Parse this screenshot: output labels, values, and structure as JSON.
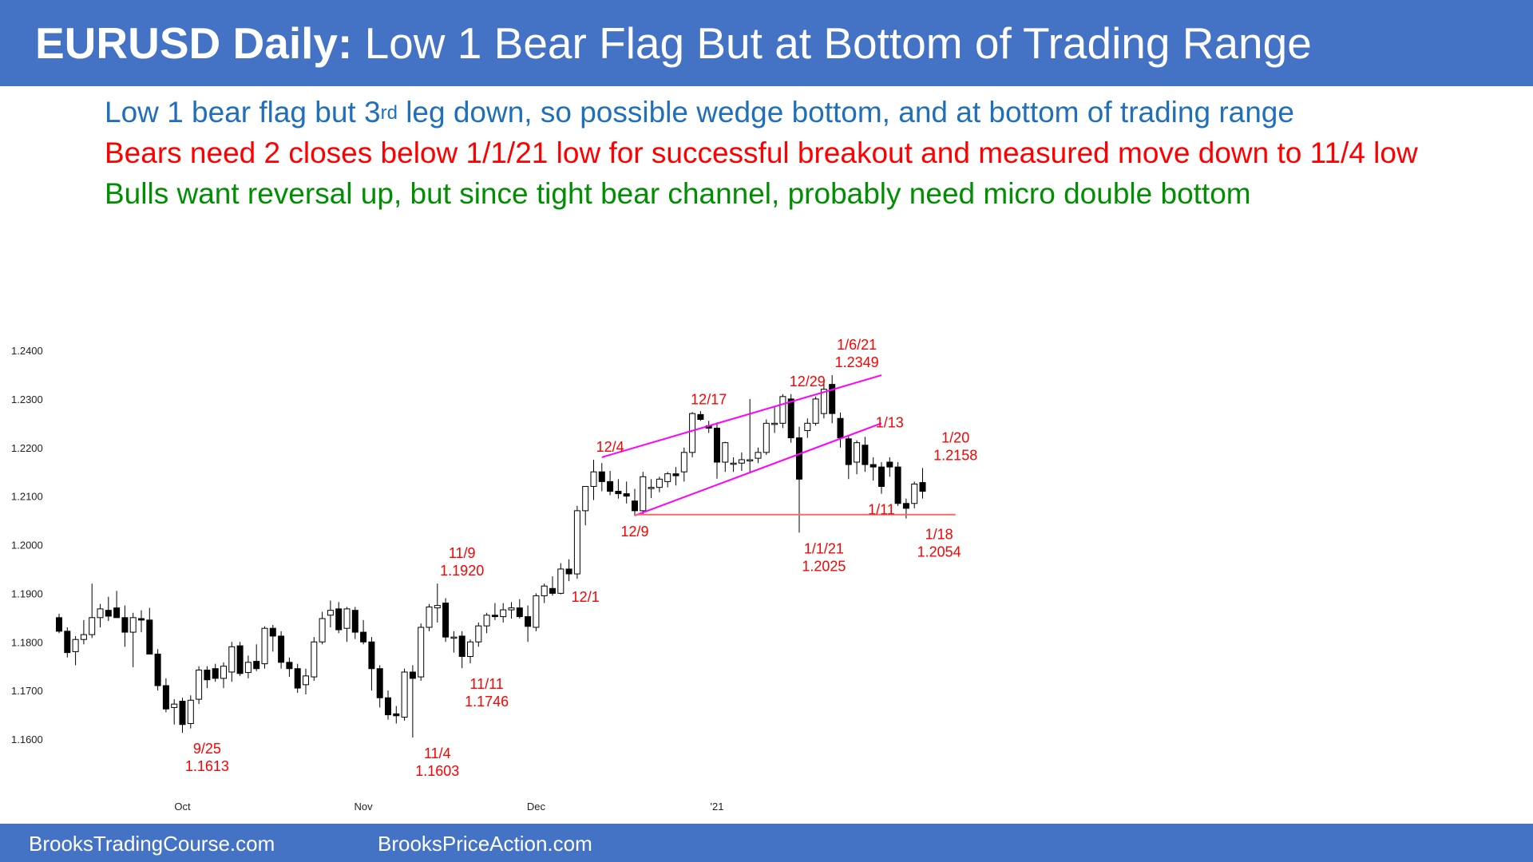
{
  "header": {
    "title_bold": "EURUSD Daily:",
    "title_rest": " Low 1 Bear Flag But at Bottom of Trading Range"
  },
  "commentary": {
    "line1_pre": "Low 1 bear flag but 3",
    "line1_sup": "rd",
    "line1_post": " leg down, so possible wedge bottom, and at bottom of trading range",
    "line2": "Bears need 2 closes below 1/1/21 low for successful breakout and measured move down to 11/4 low",
    "line3": "Bulls want reversal up, but since tight bear channel, probably need micro double bottom"
  },
  "footer": {
    "left": "BrooksTradingCourse.com",
    "right": "BrooksPriceAction.com"
  },
  "colors": {
    "brand_blue": "#4472c4",
    "annotation_red": "#ff0000",
    "trendline_magenta": "#ff00ff",
    "support_line": "#ff6666",
    "bull_green": "#008f00",
    "text_blue": "#1f6fba"
  },
  "chart_data": {
    "type": "candlestick",
    "instrument": "EURUSD",
    "timeframe": "Daily",
    "ylim": [
      1.158,
      1.244
    ],
    "yticks": [
      "1.2400",
      "1.2300",
      "1.2200",
      "1.2100",
      "1.2000",
      "1.1900",
      "1.1800",
      "1.1700",
      "1.1600"
    ],
    "xticks": [
      {
        "label": "Oct",
        "bar": 15
      },
      {
        "label": "Nov",
        "bar": 37
      },
      {
        "label": "Dec",
        "bar": 58
      },
      {
        "label": "'21",
        "bar": 80
      }
    ],
    "candles": [
      [
        1.185,
        1.1858,
        1.1818,
        1.1822
      ],
      [
        1.1822,
        1.183,
        1.1768,
        1.1778
      ],
      [
        1.178,
        1.1812,
        1.1752,
        1.1805
      ],
      [
        1.1805,
        1.1845,
        1.1795,
        1.1815
      ],
      [
        1.1815,
        1.192,
        1.1808,
        1.185
      ],
      [
        1.185,
        1.1878,
        1.183,
        1.1868
      ],
      [
        1.1865,
        1.1893,
        1.1843,
        1.1853
      ],
      [
        1.187,
        1.1905,
        1.185,
        1.185
      ],
      [
        1.185,
        1.1875,
        1.179,
        1.182
      ],
      [
        1.182,
        1.186,
        1.1748,
        1.185
      ],
      [
        1.1848,
        1.1865,
        1.182,
        1.1845
      ],
      [
        1.1845,
        1.187,
        1.1775,
        1.1775
      ],
      [
        1.1775,
        1.1785,
        1.17,
        1.171
      ],
      [
        1.171,
        1.1725,
        1.1655,
        1.1662
      ],
      [
        1.1665,
        1.1682,
        1.163,
        1.1672
      ],
      [
        1.1678,
        1.1685,
        1.1613,
        1.163
      ],
      [
        1.1632,
        1.169,
        1.1622,
        1.168
      ],
      [
        1.1682,
        1.175,
        1.1672,
        1.1742
      ],
      [
        1.1742,
        1.175,
        1.1705,
        1.1722
      ],
      [
        1.1745,
        1.1755,
        1.1718,
        1.1725
      ],
      [
        1.1725,
        1.1758,
        1.1705,
        1.175
      ],
      [
        1.1738,
        1.18,
        1.1718,
        1.179
      ],
      [
        1.1792,
        1.18,
        1.173,
        1.1735
      ],
      [
        1.1737,
        1.1772,
        1.1725,
        1.1758
      ],
      [
        1.176,
        1.1795,
        1.174,
        1.1745
      ],
      [
        1.1755,
        1.1832,
        1.1745,
        1.1828
      ],
      [
        1.1828,
        1.1835,
        1.178,
        1.1812
      ],
      [
        1.1812,
        1.1822,
        1.1745,
        1.1758
      ],
      [
        1.1758,
        1.1768,
        1.1728,
        1.1745
      ],
      [
        1.1745,
        1.1755,
        1.1695,
        1.1705
      ],
      [
        1.1712,
        1.1745,
        1.1692,
        1.173
      ],
      [
        1.1728,
        1.181,
        1.172,
        1.18
      ],
      [
        1.18,
        1.1862,
        1.1795,
        1.1848
      ],
      [
        1.1855,
        1.1885,
        1.183,
        1.1865
      ],
      [
        1.1868,
        1.1882,
        1.1818,
        1.1825
      ],
      [
        1.1828,
        1.1872,
        1.18,
        1.1868
      ],
      [
        1.1865,
        1.1872,
        1.1806,
        1.182
      ],
      [
        1.182,
        1.1845,
        1.1795,
        1.18
      ],
      [
        1.18,
        1.181,
        1.17,
        1.1745
      ],
      [
        1.1745,
        1.1752,
        1.1665,
        1.1685
      ],
      [
        1.1685,
        1.17,
        1.164,
        1.165
      ],
      [
        1.1652,
        1.1668,
        1.1632,
        1.1648
      ],
      [
        1.1645,
        1.1745,
        1.1638,
        1.1738
      ],
      [
        1.1738,
        1.1752,
        1.1603,
        1.1725
      ],
      [
        1.1728,
        1.1838,
        1.172,
        1.183
      ],
      [
        1.183,
        1.1878,
        1.1822,
        1.1872
      ],
      [
        1.187,
        1.192,
        1.184,
        1.1875
      ],
      [
        1.188,
        1.189,
        1.18,
        1.181
      ],
      [
        1.181,
        1.1822,
        1.1778,
        1.181
      ],
      [
        1.1812,
        1.1822,
        1.1746,
        1.177
      ],
      [
        1.177,
        1.1805,
        1.1756,
        1.18
      ],
      [
        1.18,
        1.184,
        1.179,
        1.1833
      ],
      [
        1.1833,
        1.186,
        1.1818,
        1.1855
      ],
      [
        1.1855,
        1.188,
        1.1845,
        1.1852
      ],
      [
        1.1852,
        1.188,
        1.184,
        1.1866
      ],
      [
        1.1866,
        1.1882,
        1.1848,
        1.187
      ],
      [
        1.187,
        1.1888,
        1.1848,
        1.1852
      ],
      [
        1.1852,
        1.1875,
        1.18,
        1.1832
      ],
      [
        1.183,
        1.19,
        1.1822,
        1.1895
      ],
      [
        1.1895,
        1.192,
        1.188,
        1.1915
      ],
      [
        1.191,
        1.1935,
        1.1895,
        1.19
      ],
      [
        1.19,
        1.1962,
        1.1898,
        1.195
      ],
      [
        1.195,
        1.197,
        1.1925,
        1.194
      ],
      [
        1.194,
        1.208,
        1.193,
        1.207
      ],
      [
        1.207,
        1.212,
        1.204,
        1.212
      ],
      [
        1.212,
        1.2175,
        1.2092,
        1.215
      ],
      [
        1.215,
        1.2168,
        1.211,
        1.213
      ],
      [
        1.213,
        1.2152,
        1.2102,
        1.211
      ],
      [
        1.211,
        1.2135,
        1.2095,
        1.2105
      ],
      [
        1.2105,
        1.213,
        1.2085,
        1.21
      ],
      [
        1.209,
        1.2115,
        1.206,
        1.207
      ],
      [
        1.207,
        1.215,
        1.2062,
        1.214
      ],
      [
        1.2118,
        1.2135,
        1.2096,
        1.2118
      ],
      [
        1.2118,
        1.214,
        1.2108,
        1.2135
      ],
      [
        1.213,
        1.215,
        1.2118,
        1.2146
      ],
      [
        1.2146,
        1.216,
        1.2122,
        1.2142
      ],
      [
        1.215,
        1.22,
        1.213,
        1.219
      ],
      [
        1.219,
        1.2273,
        1.218,
        1.227
      ],
      [
        1.2268,
        1.2275,
        1.2255,
        1.2258
      ],
      [
        1.2245,
        1.2255,
        1.223,
        1.224
      ],
      [
        1.224,
        1.2252,
        1.2136,
        1.217
      ],
      [
        1.217,
        1.2212,
        1.215,
        1.221
      ],
      [
        1.2168,
        1.218,
        1.215,
        1.2168
      ],
      [
        1.2168,
        1.219,
        1.2152,
        1.2175
      ],
      [
        1.2175,
        1.23,
        1.215,
        1.2175
      ],
      [
        1.2178,
        1.22,
        1.2168,
        1.219
      ],
      [
        1.219,
        1.2258,
        1.2185,
        1.225
      ],
      [
        1.225,
        1.2285,
        1.223,
        1.225
      ],
      [
        1.225,
        1.231,
        1.224,
        1.2305
      ],
      [
        1.23,
        1.231,
        1.221,
        1.222
      ],
      [
        1.222,
        1.2243,
        1.2025,
        1.2135
      ],
      [
        1.2235,
        1.226,
        1.222,
        1.225
      ],
      [
        1.225,
        1.2305,
        1.2245,
        1.23
      ],
      [
        1.227,
        1.234,
        1.226,
        1.232
      ],
      [
        1.233,
        1.2349,
        1.225,
        1.227
      ],
      [
        1.226,
        1.2272,
        1.22,
        1.222
      ],
      [
        1.2218,
        1.2225,
        1.2135,
        1.2165
      ],
      [
        1.217,
        1.2215,
        1.2145,
        1.221
      ],
      [
        1.2205,
        1.2222,
        1.215,
        1.2165
      ],
      [
        1.2165,
        1.218,
        1.2132,
        1.216
      ],
      [
        1.216,
        1.217,
        1.2105,
        1.212
      ],
      [
        1.217,
        1.218,
        1.214,
        1.216
      ],
      [
        1.216,
        1.217,
        1.208,
        1.2085
      ],
      [
        1.2085,
        1.2095,
        1.2054,
        1.2075
      ],
      [
        1.2085,
        1.213,
        1.2075,
        1.2125
      ],
      [
        1.2128,
        1.2158,
        1.2095,
        1.211
      ]
    ],
    "trendlines": [
      {
        "name": "channel-upper",
        "from": [
          66,
          1.218
        ],
        "to": [
          100,
          1.2349
        ],
        "color": "#ff00ff"
      },
      {
        "name": "channel-lower",
        "from": [
          70,
          1.206
        ],
        "to": [
          100,
          1.225
        ],
        "color": "#ff00ff"
      },
      {
        "name": "support",
        "from": [
          70,
          1.2062
        ],
        "to": [
          109,
          1.2062
        ],
        "color": "#ff6666"
      }
    ],
    "annotations": [
      {
        "label": "9/25",
        "sub": "1.1613",
        "bar": 18,
        "price": 1.1613,
        "pos": "below"
      },
      {
        "label": "11/4",
        "sub": "1.1603",
        "bar": 46,
        "price": 1.1603,
        "pos": "below"
      },
      {
        "label": "11/9",
        "sub": "1.1920",
        "bar": 49,
        "price": 1.192,
        "pos": "above"
      },
      {
        "label": "11/11",
        "sub": "1.1746",
        "bar": 52,
        "price": 1.1746,
        "pos": "below"
      },
      {
        "label": "12/1",
        "sub": "",
        "bar": 64,
        "price": 1.1925,
        "pos": "below"
      },
      {
        "label": "12/4",
        "sub": "",
        "bar": 67,
        "price": 1.2175,
        "pos": "above"
      },
      {
        "label": "12/9",
        "sub": "",
        "bar": 70,
        "price": 1.206,
        "pos": "below"
      },
      {
        "label": "12/17",
        "sub": "",
        "bar": 79,
        "price": 1.2273,
        "pos": "above"
      },
      {
        "label": "12/29",
        "sub": "",
        "bar": 91,
        "price": 1.231,
        "pos": "above"
      },
      {
        "label": "1/1/21",
        "sub": "1.2025",
        "bar": 93,
        "price": 1.2025,
        "pos": "below"
      },
      {
        "label": "1/6/21",
        "sub": "1.2349",
        "bar": 97,
        "price": 1.2349,
        "pos": "above"
      },
      {
        "label": "1/13",
        "sub": "",
        "bar": 101,
        "price": 1.2225,
        "pos": "above"
      },
      {
        "label": "1/11",
        "sub": "",
        "bar": 100,
        "price": 1.2105,
        "pos": "below"
      },
      {
        "label": "1/18",
        "sub": "1.2054",
        "bar": 107,
        "price": 1.2054,
        "pos": "below"
      },
      {
        "label": "1/20",
        "sub": "1.2158",
        "bar": 109,
        "price": 1.2158,
        "pos": "above"
      }
    ]
  }
}
